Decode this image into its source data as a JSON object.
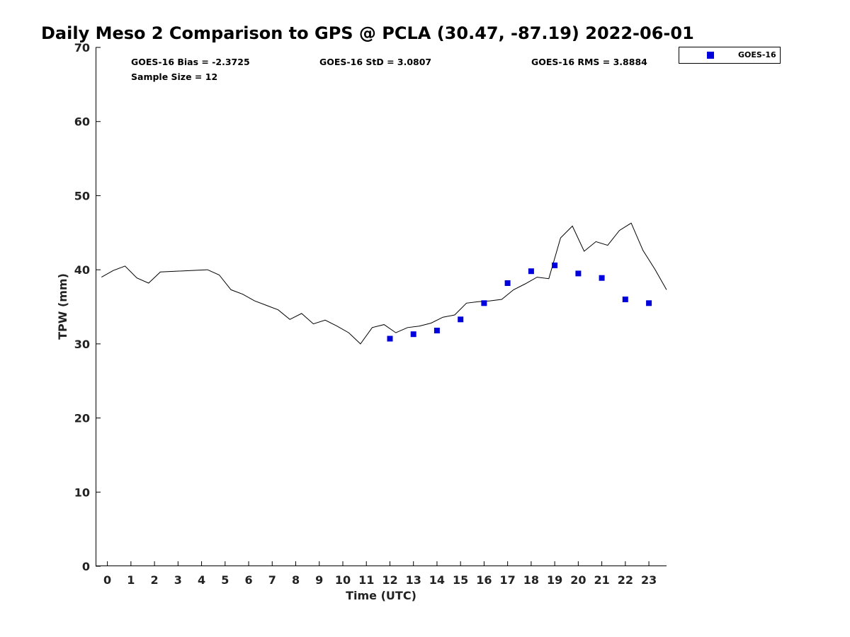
{
  "chart_data": {
    "type": "scatter",
    "title": "Daily Meso 2 Comparison to GPS @ PCLA (30.47, -87.19) 2022-06-01",
    "xlabel": "Time (UTC)",
    "ylabel": "TPW (mm)",
    "xlim": [
      -0.5,
      23.75
    ],
    "ylim": [
      0,
      70
    ],
    "x_ticks": [
      0,
      1,
      2,
      3,
      4,
      5,
      6,
      7,
      8,
      9,
      10,
      11,
      12,
      13,
      14,
      15,
      16,
      17,
      18,
      19,
      20,
      21,
      22,
      23
    ],
    "x_tick_labels": [
      "0",
      "1",
      "2",
      "3",
      "4",
      "5",
      "6",
      "7",
      "8",
      "9",
      "10",
      "11",
      "12",
      "13",
      "14",
      "15",
      "16",
      "17",
      "18",
      "19",
      "20",
      "21",
      "22",
      "23"
    ],
    "y_ticks": [
      0,
      10,
      20,
      30,
      40,
      50,
      60,
      70
    ],
    "y_tick_labels": [
      "0",
      "10",
      "20",
      "30",
      "40",
      "50",
      "60",
      "70"
    ],
    "grid": false,
    "legend_position": "outside-top-right",
    "stats": {
      "bias": "GOES-16 Bias = -2.3725",
      "std": "GOES-16 StD = 3.0807",
      "rms": "GOES-16 RMS = 3.8884",
      "sample": "Sample Size = 12"
    },
    "series": [
      {
        "name": "GOES-16",
        "type": "scatter",
        "marker": "square",
        "color": "#0000dd",
        "x": [
          12,
          13,
          14,
          15,
          16,
          17,
          18,
          19,
          20,
          21,
          22,
          23
        ],
        "y": [
          30.7,
          31.3,
          31.8,
          33.3,
          35.5,
          38.2,
          39.8,
          40.6,
          39.5,
          38.9,
          36.0,
          35.5
        ]
      },
      {
        "type": "line",
        "color": "#000000",
        "x": [
          -0.25,
          0.25,
          0.75,
          1.25,
          1.75,
          2.25,
          4.25,
          4.75,
          5.25,
          5.75,
          6.25,
          6.75,
          7.25,
          7.75,
          8.25,
          8.75,
          9.25,
          9.75,
          10.25,
          10.75,
          11.25,
          11.75,
          12.25,
          12.75,
          13.25,
          13.75,
          14.25,
          14.75,
          15.25,
          15.75,
          16.25,
          16.75,
          17.25,
          17.75,
          18.25,
          18.75,
          19.25,
          19.75,
          20.25,
          20.75,
          21.25,
          21.75,
          22.25,
          22.75,
          23.25,
          23.75
        ],
        "y": [
          39.0,
          39.9,
          40.5,
          38.9,
          38.2,
          39.7,
          40.0,
          39.3,
          37.3,
          36.7,
          35.8,
          35.2,
          34.6,
          33.3,
          34.1,
          32.7,
          33.2,
          32.4,
          31.5,
          30.0,
          32.2,
          32.6,
          31.5,
          32.2,
          32.4,
          32.8,
          33.6,
          33.9,
          35.5,
          35.7,
          35.8,
          36.0,
          37.3,
          38.1,
          39.0,
          38.8,
          44.3,
          45.9,
          42.5,
          43.8,
          43.3,
          45.3,
          46.3,
          42.6,
          40.1,
          37.3
        ]
      }
    ]
  }
}
